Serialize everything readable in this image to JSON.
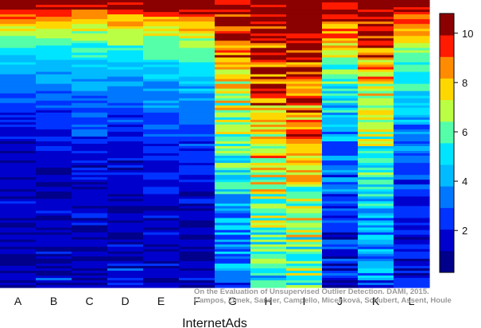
{
  "chart_data": {
    "type": "heatmap",
    "title": "",
    "xlabel": "InternetAds",
    "ylabel": "",
    "columns": [
      "A",
      "B",
      "C",
      "D",
      "E",
      "F",
      "G",
      "H",
      "I",
      "J",
      "K",
      "L"
    ],
    "row_count": 120,
    "colorbar": {
      "min": 0.3,
      "max": 10.8,
      "ticks": [
        "2",
        "4",
        "6",
        "8",
        "10"
      ],
      "tick_values": [
        2,
        4,
        6,
        8,
        10
      ],
      "bands": 12,
      "colors": [
        "#00008b",
        "#0000cd",
        "#0033ff",
        "#0077ff",
        "#00bbff",
        "#00e5ff",
        "#55ffaa",
        "#bbff44",
        "#ffd700",
        "#ff8c00",
        "#ff1a00",
        "#8b0000"
      ]
    },
    "grid": false,
    "legend": "right",
    "credit": [
      "On the Evaluation of Unsupervised Outlier Detection. DAMI, 2015.",
      "Campos, Zimek, Sander, Campello, Micenková, Schubert, Assent, Houle"
    ]
  }
}
